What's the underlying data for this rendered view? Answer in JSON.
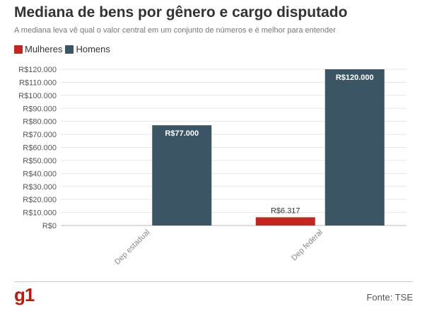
{
  "header": {
    "title": "Mediana de bens por gênero e cargo disputado",
    "subtitle": "A mediana leva vê qual o valor central em um conjunto de números e é melhor para entender"
  },
  "legend": [
    {
      "label": "Mulheres",
      "color": "#c4251f"
    },
    {
      "label": "Homens",
      "color": "#3b5565"
    }
  ],
  "chart_data": {
    "type": "bar",
    "categories": [
      "Dep estadual",
      "Dep federal"
    ],
    "series": [
      {
        "name": "Mulheres",
        "color": "#c4251f",
        "values": [
          null,
          6317
        ],
        "labels": [
          "",
          "R$6.317"
        ]
      },
      {
        "name": "Homens",
        "color": "#3b5565",
        "values": [
          77000,
          120000
        ],
        "labels": [
          "R$77.000",
          "R$120.000"
        ]
      }
    ],
    "ylim": [
      0,
      120000
    ],
    "yticks": [
      0,
      10000,
      20000,
      30000,
      40000,
      50000,
      60000,
      70000,
      80000,
      90000,
      100000,
      110000,
      120000
    ],
    "ytick_labels": [
      "R$0",
      "R$10.000",
      "R$20.000",
      "R$30.000",
      "R$40.000",
      "R$50.000",
      "R$60.000",
      "R$70.000",
      "R$80.000",
      "R$90.000",
      "R$100.000",
      "R$110.000",
      "R$120.000"
    ],
    "grid": true,
    "legend_position": "top-left"
  },
  "footer": {
    "logo": "g1",
    "source": "Fonte: TSE"
  }
}
